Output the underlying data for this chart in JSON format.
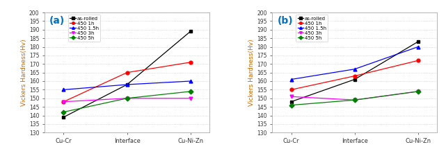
{
  "panels": [
    {
      "label": "(a)",
      "x_labels": [
        "Cu-Cr",
        "Interface",
        "Cu-Ni-Zn"
      ],
      "series": [
        {
          "name": "as-rolled",
          "color": "#000000",
          "marker": "s",
          "linestyle": "-",
          "values": [
            139,
            158,
            189
          ]
        },
        {
          "name": "450 1h",
          "color": "#ff0000",
          "marker": "o",
          "linestyle": "-",
          "values": [
            148,
            165,
            171
          ]
        },
        {
          "name": "450 1.5h",
          "color": "#0000ff",
          "marker": "^",
          "linestyle": "-",
          "values": [
            155,
            158,
            160
          ]
        },
        {
          "name": "450 3h",
          "color": "#ff00ff",
          "marker": "v",
          "linestyle": "-",
          "values": [
            148,
            150,
            150
          ]
        },
        {
          "name": "450 5h",
          "color": "#008000",
          "marker": "D",
          "linestyle": "-",
          "values": [
            142,
            150,
            154
          ]
        }
      ],
      "ylim": [
        130,
        200
      ],
      "yticks": [
        130,
        135,
        140,
        145,
        150,
        155,
        160,
        165,
        170,
        175,
        180,
        185,
        190,
        195,
        200
      ],
      "ylabel": "Vickers Hardness(Hv)"
    },
    {
      "label": "(b)",
      "x_labels": [
        "Cu-Cr",
        "Interface",
        "Cu-Ni-Zn"
      ],
      "series": [
        {
          "name": "as-rolled",
          "color": "#000000",
          "marker": "s",
          "linestyle": "-",
          "values": [
            148,
            161,
            183
          ]
        },
        {
          "name": "450 1h",
          "color": "#ff0000",
          "marker": "o",
          "linestyle": "-",
          "values": [
            155,
            163,
            172
          ]
        },
        {
          "name": "450 1.5h",
          "color": "#0000ff",
          "marker": "^",
          "linestyle": "-",
          "values": [
            161,
            167,
            180
          ]
        },
        {
          "name": "450 3h",
          "color": "#ff00ff",
          "marker": "v",
          "linestyle": "-",
          "values": [
            151,
            149,
            154
          ]
        },
        {
          "name": "450 5h",
          "color": "#008000",
          "marker": "D",
          "linestyle": "-",
          "values": [
            146,
            149,
            154
          ]
        }
      ],
      "ylim": [
        130,
        200
      ],
      "yticks": [
        130,
        135,
        140,
        145,
        150,
        155,
        160,
        165,
        170,
        175,
        180,
        185,
        190,
        195,
        200
      ],
      "ylabel": "Vickers Hardness(Hv)"
    }
  ],
  "background_color": "#ffffff",
  "grid_color": "#cccccc",
  "label_color": "#0070c0",
  "tick_color": "#333333",
  "ylabel_color": "#cc6600",
  "spine_color": "#aaaaaa"
}
